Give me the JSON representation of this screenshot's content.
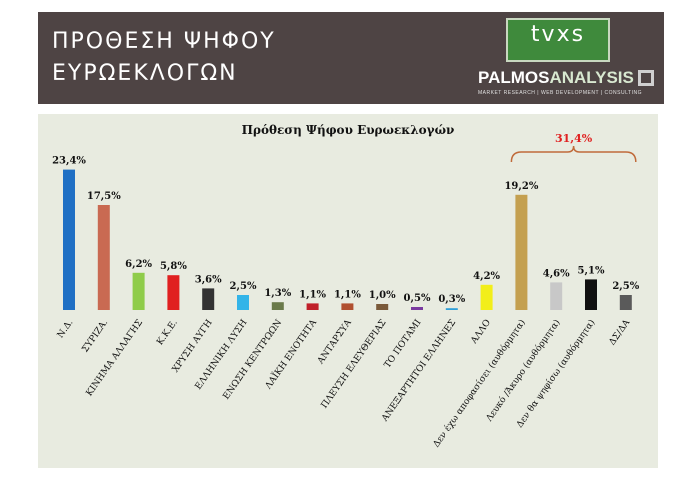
{
  "header": {
    "title_line1": "ΠΡΟΘΕΣΗ ΨΗΦΟΥ",
    "title_line2": "ΕΥΡΩΕΚΛΟΓΩΝ",
    "logo_tvxs": "tvxs",
    "logo_palmos_a": "PALMOS",
    "logo_palmos_b": "ANALYSIS",
    "logo_palmos_sub": "MARKET RESEARCH | WEB DEVELOPMENT | CONSULTING"
  },
  "chart_data": {
    "type": "bar",
    "title": "Πρόθεση Ψήφου Ευρωεκλογών",
    "xlabel": "",
    "ylabel": "",
    "ylim": [
      0,
      25
    ],
    "grid": false,
    "categories": [
      "Ν.Δ.",
      "ΣΥΡΙΖΑ.",
      "ΚΙΝΗΜΑ ΑΛΛΑΓΗΣ",
      "Κ.Κ.Ε.",
      "ΧΡΥΣΗ ΑΥΓΗ",
      "ΕΛΛΗΝΙΚΗ ΛΥΣΗ",
      "ΕΝΩΣΗ ΚΕΝΤΡΩΩΝ",
      "ΛΑΪΚΗ ΕΝΟΤΗΤΑ",
      "ΑΝΤΑΡΣΥΑ",
      "ΠΛΕΥΣΗ ΕΛΕΥΘΕΡΙΑΣ",
      "ΤΟ ΠΟΤΑΜΙ",
      "ΑΝΕΞΑΡΤΗΤΟΙ ΕΛΛΗΝΕΣ",
      "ΑΛΛΟ",
      "Δεν έχω αποφασίσει (αυθόρμητα)",
      "Λευκό /Άκυρο (αυθόρμητα)",
      "Δεν θα ψηφίσω (αυθόρμητα)",
      "ΔΣ/ΔΑ"
    ],
    "values": [
      23.4,
      17.5,
      6.2,
      5.8,
      3.6,
      2.5,
      1.3,
      1.1,
      1.1,
      1.0,
      0.5,
      0.3,
      4.2,
      19.2,
      4.6,
      5.1,
      2.5
    ],
    "value_labels": [
      "23,4%",
      "17,5%",
      "6,2%",
      "5,8%",
      "3,6%",
      "2,5%",
      "1,3%",
      "1,1%",
      "1,1%",
      "1,0%",
      "0,5%",
      "0,3%",
      "4,2%",
      "19,2%",
      "4,6%",
      "5,1%",
      "2,5%"
    ],
    "colors": [
      "#1f6fc4",
      "#c96a52",
      "#8fcc4a",
      "#e02020",
      "#333333",
      "#33b4e8",
      "#6a7a4a",
      "#c0202a",
      "#b05030",
      "#7a5a3a",
      "#7a3aa0",
      "#2f9fd8",
      "#f2ee1a",
      "#c4a050",
      "#c8c8c8",
      "#101010",
      "#5a5a5a"
    ],
    "group_bracket": {
      "label": "31,4%",
      "from_index": 13,
      "to_index": 16,
      "color": "#c06a3a"
    }
  }
}
